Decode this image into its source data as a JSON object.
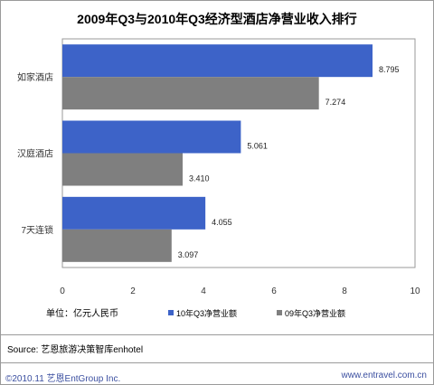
{
  "chart_data": {
    "type": "bar",
    "orientation": "horizontal",
    "title": "2009年Q3与2010年Q3经济型酒店净营业收入排行",
    "categories": [
      "如家酒店",
      "汉庭酒店",
      "7天连锁"
    ],
    "series": [
      {
        "name": "10年Q3净营业额",
        "color": "#3d63c8",
        "values": [
          8.795,
          5.061,
          4.055
        ],
        "labels": [
          "8.795",
          "5.061",
          "4.055"
        ]
      },
      {
        "name": "09年Q3净营业额",
        "color": "#7f7f7f",
        "values": [
          7.274,
          3.41,
          3.097
        ],
        "labels": [
          "7.274",
          "3.410",
          "3.097"
        ]
      }
    ],
    "xlim": [
      0,
      10
    ],
    "xticks": [
      "0",
      "2",
      "4",
      "6",
      "8",
      "10"
    ],
    "unit_label": "单位：亿元人民币",
    "legend_position": "bottom",
    "grid": false
  },
  "source": "Source: 艺恩旅游决策智库enhotel",
  "footer": {
    "left": "©2010.11 艺恩EntGroup Inc.",
    "right": "www.entravel.com.cn"
  }
}
